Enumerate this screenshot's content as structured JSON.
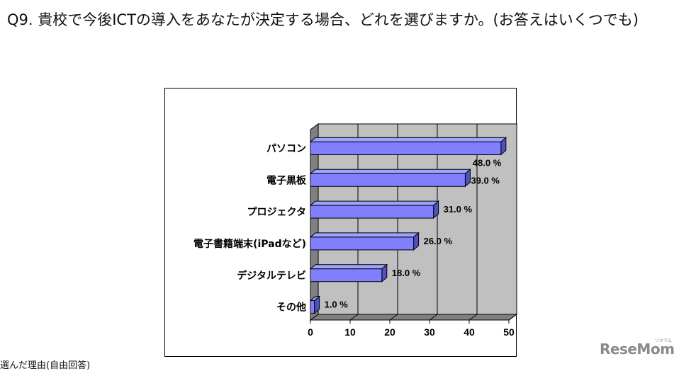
{
  "question": "Q9. 貴校で今後ICTの導入をあなたが決定する場合、どれを選びますか。(お答えはいくつでも)",
  "chart_data": {
    "type": "bar",
    "orientation": "horizontal",
    "categories": [
      "パソコン",
      "電子黒板",
      "プロジェクタ",
      "電子書籍端末(iPadなど)",
      "デジタルテレビ",
      "その他"
    ],
    "values": [
      48.0,
      39.0,
      31.0,
      26.0,
      18.0,
      1.0
    ],
    "value_labels": [
      "48.0 %",
      "39.0 %",
      "31.0 %",
      "26.0 %",
      "18.0 %",
      "1.0 %"
    ],
    "xticks": [
      "0",
      "10",
      "20",
      "30",
      "40",
      "50"
    ],
    "xlim": [
      0,
      50
    ],
    "grid": true,
    "style": "3d",
    "bar_color": "#8080ff"
  },
  "bottom_text": "選んだ理由(自由回答)",
  "logo": {
    "text": "ReseMom",
    "sub": "リセマム"
  }
}
